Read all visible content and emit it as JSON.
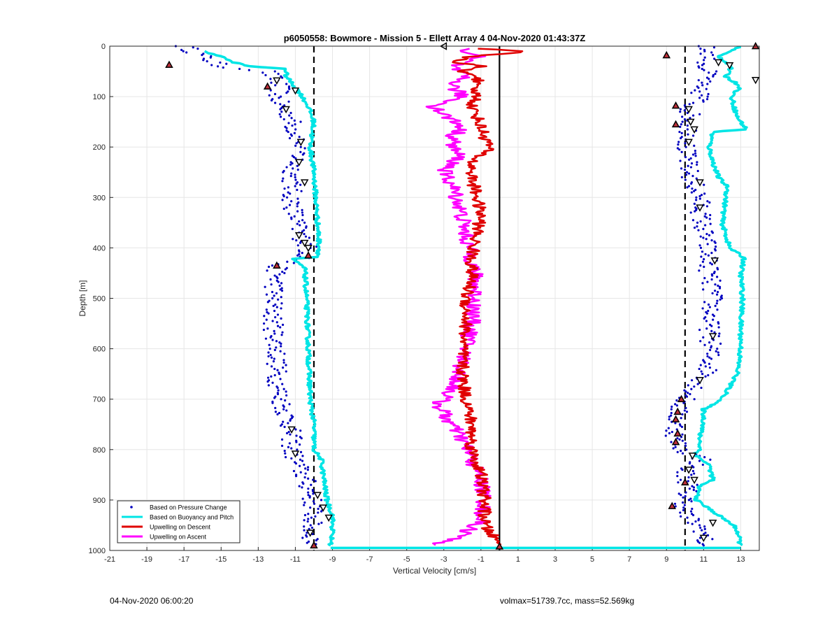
{
  "chart_data": {
    "type": "scatter",
    "title": "p6050558: Bowmore - Mission 5 - Ellett Array 4 04-Nov-2020 01:43:37Z",
    "xlabel": "Vertical Velocity [cm/s]",
    "ylabel": "Depth [m]",
    "xlim": [
      -21,
      14
    ],
    "ylim": [
      0,
      1000
    ],
    "y_reversed": true,
    "xticks": [
      "-21",
      "-19",
      "-17",
      "-15",
      "-13",
      "-11",
      "-9",
      "-7",
      "-5",
      "-3",
      "-1",
      "1",
      "3",
      "5",
      "7",
      "9",
      "11",
      "13"
    ],
    "yticks": [
      "0",
      "100",
      "200",
      "300",
      "400",
      "500",
      "600",
      "700",
      "800",
      "900",
      "1000"
    ],
    "grid": true,
    "legend_position": "bottom-left",
    "reference_lines": {
      "dashed_x": [
        -10,
        10
      ],
      "solid_x": [
        0
      ]
    },
    "series": [
      {
        "name": "Based on Pressure Change",
        "color": "#0000c0",
        "profiles": [
          {
            "label": "descent",
            "points": [
              [
                0,
                -17
              ],
              [
                20,
                -16
              ],
              [
                40,
                -15
              ],
              [
                50,
                -12.5
              ],
              [
                70,
                -12
              ],
              [
                85,
                -11.8
              ],
              [
                100,
                -12
              ],
              [
                120,
                -11.8
              ],
              [
                140,
                -11.3
              ],
              [
                170,
                -11
              ],
              [
                200,
                -10.6
              ],
              [
                230,
                -11
              ],
              [
                260,
                -11.2
              ],
              [
                300,
                -11.2
              ],
              [
                340,
                -11
              ],
              [
                370,
                -10.8
              ],
              [
                400,
                -10.3
              ],
              [
                420,
                -10.5
              ],
              [
                435,
                -12
              ],
              [
                450,
                -12
              ],
              [
                500,
                -12.2
              ],
              [
                550,
                -12.2
              ],
              [
                600,
                -12
              ],
              [
                650,
                -12
              ],
              [
                700,
                -11.8
              ],
              [
                750,
                -11.3
              ],
              [
                780,
                -11.2
              ],
              [
                800,
                -11.2
              ],
              [
                820,
                -11
              ],
              [
                850,
                -10.6
              ],
              [
                880,
                -10.2
              ],
              [
                920,
                -10
              ],
              [
                960,
                -10.2
              ],
              [
                990,
                -10
              ]
            ]
          },
          {
            "label": "ascent",
            "points": [
              [
                0,
                11
              ],
              [
                20,
                11.5
              ],
              [
                40,
                11
              ],
              [
                60,
                11.3
              ],
              [
                80,
                10.5
              ],
              [
                100,
                11
              ],
              [
                120,
                10.2
              ],
              [
                140,
                10.3
              ],
              [
                160,
                10.2
              ],
              [
                180,
                10.3
              ],
              [
                200,
                10
              ],
              [
                250,
                10.2
              ],
              [
                300,
                10.8
              ],
              [
                350,
                10.9
              ],
              [
                400,
                11.2
              ],
              [
                450,
                11.3
              ],
              [
                500,
                11.5
              ],
              [
                550,
                11.3
              ],
              [
                600,
                11.4
              ],
              [
                650,
                11.2
              ],
              [
                680,
                10.5
              ],
              [
                700,
                10
              ],
              [
                720,
                9.6
              ],
              [
                750,
                9.5
              ],
              [
                780,
                9.5
              ],
              [
                800,
                9.8
              ],
              [
                820,
                11
              ],
              [
                840,
                10
              ],
              [
                870,
                10.2
              ],
              [
                900,
                10
              ],
              [
                930,
                10
              ],
              [
                960,
                11
              ],
              [
                990,
                11
              ]
            ]
          }
        ]
      },
      {
        "name": "Based on Buoyancy and Pitch",
        "color": "#00e5e5",
        "profiles": [
          {
            "label": "descent",
            "points": [
              [
                10,
                -16
              ],
              [
                20,
                -15
              ],
              [
                30,
                -14.5
              ],
              [
                40,
                -13.5
              ],
              [
                45,
                -11.5
              ],
              [
                60,
                -11.5
              ],
              [
                90,
                -10.8
              ],
              [
                120,
                -10.3
              ],
              [
                150,
                -10
              ],
              [
                200,
                -10.2
              ],
              [
                250,
                -10
              ],
              [
                300,
                -9.9
              ],
              [
                350,
                -9.8
              ],
              [
                400,
                -9.7
              ],
              [
                418,
                -9.8
              ],
              [
                422,
                -11.2
              ],
              [
                440,
                -10.5
              ],
              [
                500,
                -10.4
              ],
              [
                600,
                -10.3
              ],
              [
                700,
                -10.2
              ],
              [
                750,
                -10
              ],
              [
                800,
                -10
              ],
              [
                820,
                -9.6
              ],
              [
                850,
                -9.5
              ],
              [
                900,
                -9.3
              ],
              [
                930,
                -9
              ],
              [
                960,
                -9
              ],
              [
                990,
                -9.1
              ]
            ]
          },
          {
            "label": "ascent",
            "points": [
              [
                0,
                13
              ],
              [
                20,
                11.8
              ],
              [
                40,
                12.5
              ],
              [
                60,
                12.2
              ],
              [
                80,
                13
              ],
              [
                100,
                12.5
              ],
              [
                140,
                12.8
              ],
              [
                165,
                13.3
              ],
              [
                170,
                11.5
              ],
              [
                200,
                11.3
              ],
              [
                230,
                11.5
              ],
              [
                260,
                11.8
              ],
              [
                280,
                12.3
              ],
              [
                300,
                12.2
              ],
              [
                350,
                12
              ],
              [
                400,
                12.4
              ],
              [
                420,
                13.2
              ],
              [
                450,
                13
              ],
              [
                500,
                13.1
              ],
              [
                550,
                13
              ],
              [
                600,
                13
              ],
              [
                650,
                12.8
              ],
              [
                700,
                12
              ],
              [
                720,
                11
              ],
              [
                750,
                11
              ],
              [
                770,
                10.8
              ],
              [
                800,
                10.8
              ],
              [
                810,
                10.5
              ],
              [
                830,
                11.3
              ],
              [
                860,
                11.5
              ],
              [
                870,
                10.8
              ],
              [
                900,
                10.6
              ],
              [
                950,
                12.6
              ],
              [
                960,
                12.8
              ],
              [
                990,
                13
              ]
            ]
          }
        ]
      },
      {
        "name": "Upwelling on Descent",
        "color": "#e00000",
        "points": [
          [
            5,
            -1
          ],
          [
            10,
            1.5
          ],
          [
            20,
            -1.5
          ],
          [
            30,
            -2.5
          ],
          [
            40,
            -1
          ],
          [
            50,
            -2.2
          ],
          [
            60,
            -1
          ],
          [
            80,
            -1.5
          ],
          [
            100,
            -1.2
          ],
          [
            120,
            -1.5
          ],
          [
            140,
            -1.2
          ],
          [
            160,
            -1
          ],
          [
            180,
            -0.8
          ],
          [
            200,
            -0.5
          ],
          [
            230,
            -1.5
          ],
          [
            260,
            -1.5
          ],
          [
            300,
            -1.2
          ],
          [
            340,
            -1
          ],
          [
            380,
            -1.3
          ],
          [
            420,
            -1.5
          ],
          [
            460,
            -1.5
          ],
          [
            500,
            -1.8
          ],
          [
            550,
            -1.8
          ],
          [
            600,
            -2
          ],
          [
            650,
            -2
          ],
          [
            700,
            -1.8
          ],
          [
            750,
            -1.5
          ],
          [
            800,
            -1.5
          ],
          [
            850,
            -1
          ],
          [
            900,
            -0.8
          ],
          [
            950,
            -0.8
          ],
          [
            990,
            0
          ]
        ]
      },
      {
        "name": "Upwelling on Ascent",
        "color": "#ff00ff",
        "points": [
          [
            5,
            -2
          ],
          [
            20,
            -1.2
          ],
          [
            40,
            -2.5
          ],
          [
            60,
            -2
          ],
          [
            80,
            -2.5
          ],
          [
            100,
            -2
          ],
          [
            120,
            -3.5
          ],
          [
            140,
            -2.8
          ],
          [
            160,
            -2
          ],
          [
            180,
            -2.5
          ],
          [
            200,
            -2.5
          ],
          [
            220,
            -2.2
          ],
          [
            250,
            -3
          ],
          [
            280,
            -2.5
          ],
          [
            300,
            -2.3
          ],
          [
            340,
            -2
          ],
          [
            380,
            -1.8
          ],
          [
            420,
            -1.5
          ],
          [
            460,
            -1.3
          ],
          [
            500,
            -1.3
          ],
          [
            550,
            -1.5
          ],
          [
            600,
            -1.8
          ],
          [
            650,
            -2.2
          ],
          [
            680,
            -2.5
          ],
          [
            710,
            -3.3
          ],
          [
            740,
            -2.8
          ],
          [
            780,
            -2
          ],
          [
            820,
            -1.5
          ],
          [
            860,
            -1
          ],
          [
            900,
            -0.8
          ],
          [
            940,
            -1
          ],
          [
            970,
            -2
          ],
          [
            990,
            -3.5
          ]
        ]
      }
    ],
    "markers": {
      "up_triangles": [
        [
          -17.8,
          37
        ],
        [
          -12.5,
          80
        ],
        [
          -12,
          435
        ],
        [
          -10.3,
          415
        ],
        [
          -10,
          990
        ],
        [
          9,
          18
        ],
        [
          9.5,
          118
        ],
        [
          9.5,
          155
        ],
        [
          9.3,
          912
        ],
        [
          9.8,
          700
        ],
        [
          9.6,
          725
        ],
        [
          9.5,
          740
        ],
        [
          9.6,
          768
        ],
        [
          9.5,
          785
        ],
        [
          10,
          865
        ],
        [
          0,
          992
        ],
        [
          13.8,
          0
        ]
      ],
      "down_triangles": [
        [
          -12,
          68
        ],
        [
          -11,
          88
        ],
        [
          -11.5,
          125
        ],
        [
          -10.7,
          190
        ],
        [
          -10.8,
          230
        ],
        [
          -10.5,
          270
        ],
        [
          -10.8,
          375
        ],
        [
          -10.5,
          390
        ],
        [
          -10.3,
          400
        ],
        [
          -11.2,
          760
        ],
        [
          -11,
          808
        ],
        [
          -9.8,
          890
        ],
        [
          -9.5,
          915
        ],
        [
          -9.2,
          935
        ],
        [
          -10.2,
          965
        ],
        [
          10.2,
          125
        ],
        [
          10.3,
          150
        ],
        [
          10.5,
          165
        ],
        [
          10.2,
          190
        ],
        [
          10.8,
          270
        ],
        [
          10.8,
          320
        ],
        [
          11.6,
          425
        ],
        [
          11.5,
          575
        ],
        [
          10.8,
          662
        ],
        [
          10.4,
          812
        ],
        [
          10.2,
          840
        ],
        [
          10.5,
          860
        ],
        [
          11.8,
          32
        ],
        [
          12.4,
          38
        ],
        [
          13.8,
          67
        ],
        [
          11.5,
          945
        ],
        [
          11,
          975
        ]
      ],
      "left_triangles": [
        [
          -3,
          0
        ]
      ]
    }
  },
  "footer": {
    "timestamp": "04-Nov-2020 06:00:20",
    "stats": "volmax=51739.7cc, mass=52.569kg"
  }
}
